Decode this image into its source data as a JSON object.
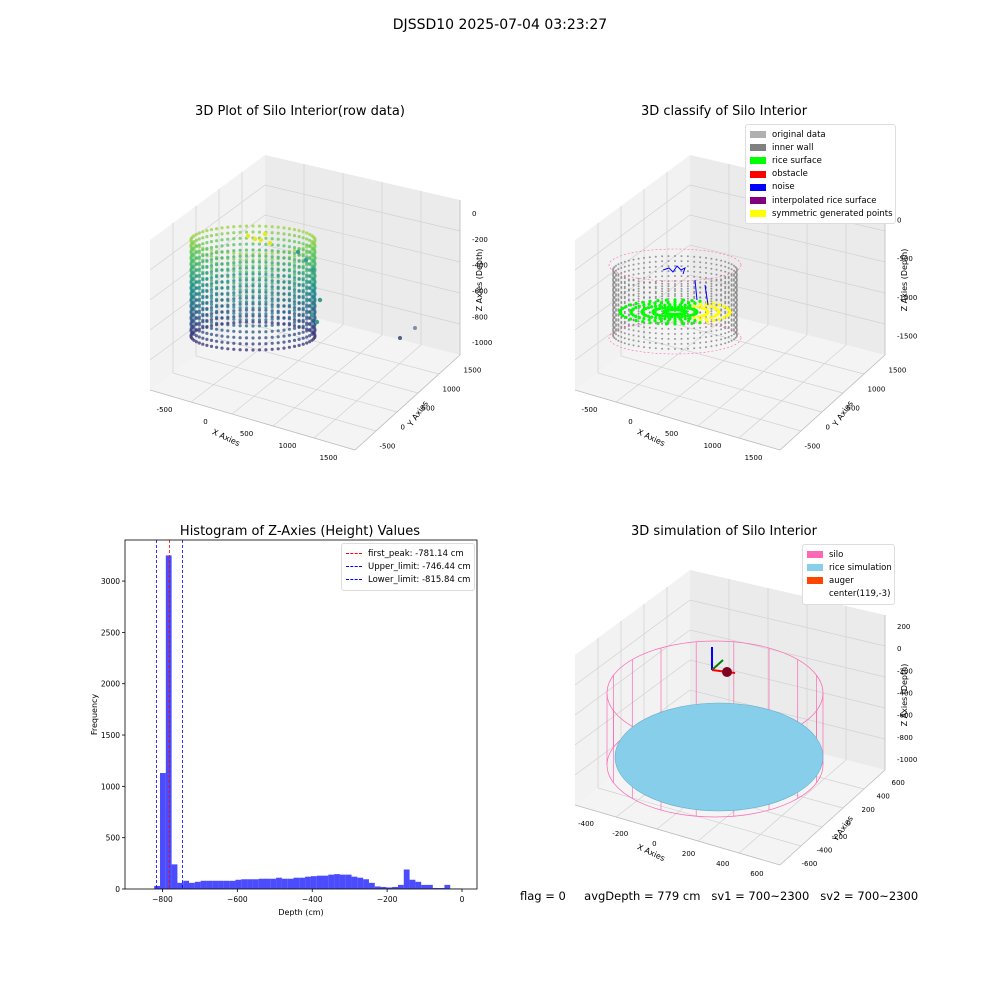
{
  "figure": {
    "suptitle": "DJSSD10 2025-07-04 03:23:27",
    "footer": {
      "flag": "flag = 0",
      "avg": "avgDepth = 779 cm",
      "sv1": "sv1 = 700~2300",
      "sv2": "sv2 = 700~2300"
    }
  },
  "panels": {
    "raw": {
      "title": "3D Plot of Silo Interior(row data)",
      "xlabel": "X Axies",
      "ylabel": "Y Axies",
      "zlabel": "Z Axies (Depth)",
      "xticks": [
        "-500",
        "0",
        "500",
        "1000",
        "1500"
      ],
      "yticks": [
        "-500",
        "0",
        "500",
        "1000",
        "1500"
      ],
      "zticks": [
        "0",
        "-200",
        "-400",
        "-600",
        "-800",
        "-1000"
      ]
    },
    "classify": {
      "title": "3D classify of Silo Interior",
      "xlabel": "X Axies",
      "ylabel": "Y Axies",
      "zlabel": "Z Axies (Depth)",
      "xticks": [
        "-500",
        "0",
        "500",
        "1000",
        "1500"
      ],
      "yticks": [
        "-500",
        "0",
        "500",
        "1000",
        "1500"
      ],
      "zticks": [
        "0",
        "-500",
        "-1000",
        "-1500"
      ],
      "legend": [
        {
          "label": "original data",
          "color": "#b0b0b0"
        },
        {
          "label": "inner wall",
          "color": "#808080"
        },
        {
          "label": "rice surface",
          "color": "#00ff00"
        },
        {
          "label": "obstacle",
          "color": "#ff0000"
        },
        {
          "label": "noise",
          "color": "#0000ff"
        },
        {
          "label": "interpolated rice surface",
          "color": "#800080"
        },
        {
          "label": "symmetric generated points",
          "color": "#ffff00"
        }
      ]
    },
    "simulation": {
      "title": "3D simulation of Silo Interior",
      "xlabel": "X Axies",
      "ylabel": "Y Axies",
      "zlabel": "Z Axies (Depth)",
      "xticks": [
        "-400",
        "-200",
        "0",
        "200",
        "400",
        "600"
      ],
      "yticks": [
        "-600",
        "-400",
        "-200",
        "0",
        "200",
        "400",
        "600"
      ],
      "zticks": [
        "200",
        "0",
        "-200",
        "-400",
        "-600",
        "-800",
        "-1000"
      ],
      "legend": [
        {
          "label": "silo",
          "color": "#ff69b4"
        },
        {
          "label": "rice simulation",
          "color": "#87ceeb"
        },
        {
          "label": "auger",
          "color": "#ff4500"
        },
        {
          "label": "center(119,-3)",
          "color": "#ffffff"
        }
      ]
    }
  },
  "chart_data": {
    "type": "bar",
    "title": "Histogram of Z-Axies (Height) Values",
    "xlabel": "Depth (cm)",
    "ylabel": "Frequency",
    "xlim": [
      -900,
      40
    ],
    "ylim": [
      0,
      3400
    ],
    "xticks": [
      -800,
      -600,
      -400,
      -200,
      0
    ],
    "yticks": [
      0,
      500,
      1000,
      1500,
      2000,
      2500,
      3000
    ],
    "bin_width": 15.5,
    "bins_left": [
      -822,
      -806.5,
      -791,
      -775.5,
      -760,
      -744.5,
      -729,
      -713.5,
      -698,
      -682.5,
      -667,
      -651.5,
      -636,
      -620.5,
      -605,
      -589.5,
      -574,
      -558.5,
      -543,
      -527.5,
      -512,
      -496.5,
      -481,
      -465.5,
      -450,
      -434.5,
      -419,
      -403.5,
      -388,
      -372.5,
      -357,
      -341.5,
      -326,
      -310.5,
      -295,
      -279.5,
      -264,
      -248.5,
      -233,
      -217.5,
      -202,
      -186.5,
      -171,
      -155.5,
      -140,
      -124.5,
      -109,
      -93.5,
      -78,
      -62.5,
      -47,
      -31.5,
      -16,
      -0.5
    ],
    "counts": [
      30,
      1130,
      3250,
      240,
      60,
      80,
      60,
      70,
      80,
      80,
      80,
      80,
      80,
      80,
      90,
      95,
      95,
      95,
      100,
      100,
      100,
      110,
      100,
      100,
      110,
      110,
      120,
      125,
      130,
      130,
      140,
      145,
      140,
      140,
      120,
      110,
      95,
      60,
      25,
      20,
      15,
      20,
      40,
      190,
      90,
      70,
      40,
      40,
      10,
      10,
      40,
      5,
      5,
      0
    ],
    "lines": [
      {
        "label": "first_peak: -781.14 cm",
        "x": -781.14,
        "color": "#ff0000"
      },
      {
        "label": "Upper_limit: -746.44 cm",
        "x": -746.44,
        "color": "#0000ff"
      },
      {
        "label": "Lower_limit: -815.84 cm",
        "x": -815.84,
        "color": "#0000ff"
      }
    ],
    "bar_color": "#0000ff"
  }
}
